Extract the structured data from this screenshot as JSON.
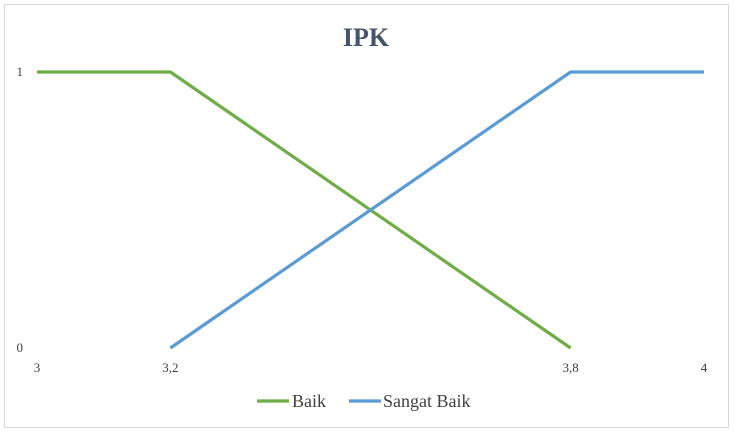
{
  "chart_data": {
    "type": "line",
    "title": "IPK",
    "xlabel": "",
    "ylabel": "",
    "x_ticks": [
      "3",
      "3,2",
      "3,8",
      "4"
    ],
    "x_tick_values": [
      3,
      3.2,
      3.8,
      4
    ],
    "y_ticks": [
      "0",
      "1"
    ],
    "y_tick_values": [
      0,
      1
    ],
    "xlim": [
      3,
      4
    ],
    "ylim": [
      0,
      1
    ],
    "grid": false,
    "legend_position": "bottom",
    "series": [
      {
        "name": "Baik",
        "color": "#70ad47",
        "points": [
          [
            3,
            1
          ],
          [
            3.2,
            1
          ],
          [
            3.8,
            0
          ]
        ]
      },
      {
        "name": "Sangat Baik",
        "color": "#5b9bd5",
        "points": [
          [
            3.2,
            0
          ],
          [
            3.8,
            1
          ],
          [
            4,
            1
          ]
        ]
      }
    ]
  }
}
